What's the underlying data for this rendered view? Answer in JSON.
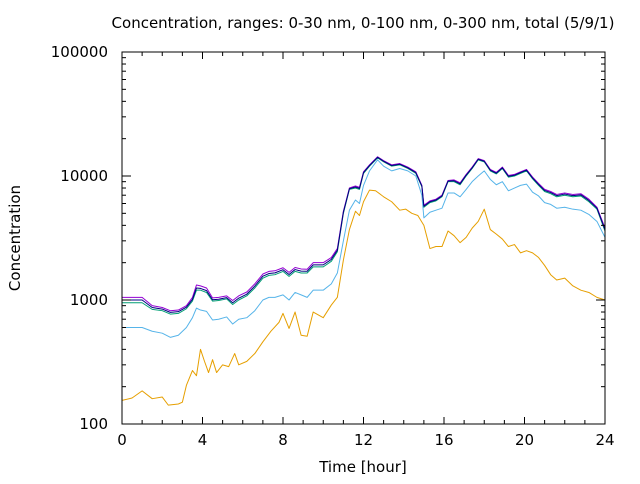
{
  "chart_data": {
    "type": "line",
    "title": "Concentration, ranges: 0-30 nm, 0-100 nm, 0-300 nm, total (5/9/1)",
    "xlabel": "Time [hour]",
    "ylabel": "Concentration",
    "xlim": [
      0,
      24
    ],
    "ylim": [
      100,
      100000
    ],
    "yscale": "log",
    "grid": false,
    "legend": "none",
    "x_ticks": [
      0,
      4,
      8,
      12,
      16,
      20,
      24
    ],
    "x_tick_labels": [
      "0",
      "4",
      "8",
      "12",
      "16",
      "20",
      "24"
    ],
    "y_ticks": [
      100,
      1000,
      10000,
      100000
    ],
    "y_tick_labels": [
      "100",
      "1000",
      "10000",
      "100000"
    ],
    "series": [
      {
        "color": "#e69f00",
        "x": [
          0,
          0.5,
          1,
          1.5,
          2,
          2.3,
          2.8,
          3.0,
          3.2,
          3.5,
          3.7,
          3.9,
          4.1,
          4.3,
          4.5,
          4.7,
          5.0,
          5.3,
          5.6,
          5.8,
          6.2,
          6.6,
          7.0,
          7.4,
          7.8,
          8.0,
          8.3,
          8.6,
          8.9,
          9.2,
          9.5,
          10.0,
          10.4,
          10.7,
          11.0,
          11.3,
          11.6,
          11.8,
          12.0,
          12.3,
          12.6,
          13.0,
          13.4,
          13.8,
          14.1,
          14.4,
          14.7,
          15.0,
          15.3,
          15.6,
          15.9,
          16.2,
          16.5,
          16.8,
          17.1,
          17.4,
          17.7,
          18.0,
          18.3,
          18.6,
          18.9,
          19.2,
          19.5,
          19.8,
          20.1,
          20.4,
          20.7,
          21.0,
          21.3,
          21.6,
          22.0,
          22.4,
          22.8,
          23.2,
          23.6,
          24.0
        ],
        "values": [
          155,
          162,
          185,
          160,
          165,
          142,
          145,
          150,
          205,
          270,
          245,
          400,
          320,
          260,
          330,
          260,
          300,
          290,
          370,
          300,
          320,
          370,
          460,
          560,
          660,
          780,
          590,
          800,
          520,
          510,
          800,
          720,
          910,
          1050,
          2100,
          3700,
          5200,
          4800,
          6200,
          7700,
          7600,
          6800,
          6200,
          5300,
          5400,
          5000,
          4800,
          4000,
          2600,
          2700,
          2700,
          3600,
          3300,
          2900,
          3200,
          3800,
          4300,
          5400,
          3700,
          3400,
          3100,
          2700,
          2800,
          2400,
          2500,
          2400,
          2200,
          1900,
          1600,
          1450,
          1500,
          1300,
          1200,
          1150,
          1050,
          1000
        ]
      },
      {
        "color": "#56b4e9",
        "x": [
          0,
          1,
          1.5,
          2,
          2.4,
          2.8,
          3.2,
          3.5,
          3.7,
          3.9,
          4.2,
          4.5,
          4.8,
          5.2,
          5.5,
          5.8,
          6.2,
          6.6,
          7.0,
          7.3,
          7.6,
          8.0,
          8.3,
          8.6,
          8.9,
          9.2,
          9.5,
          10.0,
          10.4,
          10.7,
          11.0,
          11.3,
          11.6,
          11.8,
          12.0,
          12.3,
          12.7,
          13.0,
          13.4,
          13.8,
          14.2,
          14.6,
          14.9,
          15.0,
          15.3,
          15.6,
          15.9,
          16.2,
          16.5,
          16.8,
          17.1,
          17.4,
          17.7,
          18.0,
          18.3,
          18.6,
          18.9,
          19.2,
          19.5,
          19.8,
          20.1,
          20.4,
          20.7,
          21.0,
          21.3,
          21.6,
          22.0,
          22.4,
          22.8,
          23.2,
          23.6,
          24.0
        ],
        "values": [
          600,
          600,
          560,
          540,
          500,
          520,
          600,
          720,
          860,
          830,
          810,
          690,
          700,
          730,
          640,
          700,
          720,
          820,
          1000,
          1050,
          1050,
          1100,
          1000,
          1150,
          1100,
          1050,
          1200,
          1200,
          1350,
          1650,
          3000,
          5300,
          6400,
          6000,
          8400,
          11000,
          13500,
          12000,
          11000,
          11500,
          11000,
          10000,
          7000,
          4600,
          5100,
          5300,
          5500,
          7300,
          7300,
          6800,
          7800,
          9000,
          10000,
          11000,
          9400,
          8500,
          9000,
          7600,
          8000,
          8400,
          8600,
          7400,
          6900,
          6100,
          5900,
          5500,
          5600,
          5400,
          5300,
          4900,
          4300,
          3200
        ]
      },
      {
        "color": "#009e73",
        "x": [
          0,
          1,
          1.5,
          2,
          2.4,
          2.8,
          3.2,
          3.5,
          3.7,
          3.9,
          4.2,
          4.5,
          4.8,
          5.2,
          5.5,
          5.8,
          6.2,
          6.6,
          7.0,
          7.3,
          7.6,
          8.0,
          8.3,
          8.6,
          8.9,
          9.2,
          9.5,
          10.0,
          10.4,
          10.7,
          11.0,
          11.3,
          11.6,
          11.8,
          12.0,
          12.3,
          12.7,
          13.0,
          13.4,
          13.8,
          14.2,
          14.6,
          14.9,
          15.0,
          15.3,
          15.6,
          15.9,
          16.2,
          16.5,
          16.8,
          17.1,
          17.4,
          17.7,
          18.0,
          18.3,
          18.6,
          18.9,
          19.2,
          19.5,
          19.8,
          20.1,
          20.4,
          20.7,
          21.0,
          21.3,
          21.6,
          22.0,
          22.4,
          22.8,
          23.2,
          23.6,
          24.0
        ],
        "values": [
          950,
          950,
          840,
          820,
          770,
          780,
          850,
          980,
          1200,
          1200,
          1150,
          980,
          990,
          1020,
          920,
          1000,
          1080,
          1250,
          1500,
          1580,
          1600,
          1700,
          1550,
          1700,
          1650,
          1650,
          1850,
          1850,
          2050,
          2450,
          5000,
          7800,
          8000,
          7800,
          10500,
          12000,
          14000,
          13000,
          12000,
          12300,
          11500,
          10500,
          8200,
          5600,
          6100,
          6300,
          6800,
          9000,
          9000,
          8500,
          10000,
          11500,
          13500,
          13000,
          11000,
          10400,
          11500,
          9800,
          10000,
          10500,
          11000,
          9500,
          8400,
          7500,
          7200,
          6800,
          7000,
          6800,
          6900,
          6200,
          5400,
          3600
        ]
      },
      {
        "color": "#9400d3",
        "x": [
          0,
          1,
          1.5,
          2,
          2.4,
          2.8,
          3.2,
          3.5,
          3.7,
          3.9,
          4.2,
          4.5,
          4.8,
          5.2,
          5.5,
          5.8,
          6.2,
          6.6,
          7.0,
          7.3,
          7.6,
          8.0,
          8.3,
          8.6,
          8.9,
          9.2,
          9.5,
          10.0,
          10.4,
          10.7,
          11.0,
          11.3,
          11.6,
          11.8,
          12.0,
          12.3,
          12.7,
          13.0,
          13.4,
          13.8,
          14.2,
          14.6,
          14.9,
          15.0,
          15.3,
          15.6,
          15.9,
          16.2,
          16.5,
          16.8,
          17.1,
          17.4,
          17.7,
          18.0,
          18.3,
          18.6,
          18.9,
          19.2,
          19.5,
          19.8,
          20.1,
          20.4,
          20.7,
          21.0,
          21.3,
          21.6,
          22.0,
          22.4,
          22.8,
          23.2,
          23.6,
          24.0
        ],
        "values": [
          1050,
          1050,
          900,
          870,
          820,
          830,
          900,
          1050,
          1320,
          1300,
          1250,
          1040,
          1050,
          1080,
          990,
          1080,
          1160,
          1350,
          1620,
          1700,
          1720,
          1820,
          1670,
          1830,
          1780,
          1770,
          2000,
          2000,
          2200,
          2600,
          5200,
          8000,
          8300,
          8100,
          10800,
          12300,
          14300,
          13300,
          12300,
          12600,
          11800,
          10800,
          8400,
          5800,
          6300,
          6500,
          7000,
          9200,
          9300,
          8800,
          10300,
          11800,
          13800,
          13300,
          11300,
          10700,
          11800,
          10100,
          10300,
          10800,
          11300,
          9800,
          8700,
          7800,
          7500,
          7100,
          7300,
          7100,
          7200,
          6500,
          5600,
          3800
        ]
      },
      {
        "color": "#000080",
        "x": [
          0,
          1,
          1.5,
          2,
          2.4,
          2.8,
          3.2,
          3.5,
          3.7,
          3.9,
          4.2,
          4.5,
          4.8,
          5.2,
          5.5,
          5.8,
          6.2,
          6.6,
          7.0,
          7.3,
          7.6,
          8.0,
          8.3,
          8.6,
          8.9,
          9.2,
          9.5,
          10.0,
          10.4,
          10.7,
          11.0,
          11.3,
          11.6,
          11.8,
          12.0,
          12.3,
          12.7,
          13.0,
          13.4,
          13.8,
          14.2,
          14.6,
          14.9,
          15.0,
          15.3,
          15.6,
          15.9,
          16.2,
          16.5,
          16.8,
          17.1,
          17.4,
          17.7,
          18.0,
          18.3,
          18.6,
          18.9,
          19.2,
          19.5,
          19.8,
          20.1,
          20.4,
          20.7,
          21.0,
          21.3,
          21.6,
          22.0,
          22.4,
          22.8,
          23.2,
          23.6,
          24.0
        ],
        "values": [
          1000,
          1000,
          870,
          845,
          795,
          805,
          875,
          1010,
          1250,
          1240,
          1190,
          1005,
          1015,
          1045,
          950,
          1035,
          1115,
          1295,
          1555,
          1635,
          1655,
          1755,
          1605,
          1760,
          1710,
          1705,
          1920,
          1920,
          2125,
          2520,
          5100,
          7900,
          8150,
          7950,
          10650,
          12150,
          14150,
          13150,
          12150,
          12450,
          11650,
          10650,
          8300,
          5700,
          6200,
          6400,
          6900,
          9100,
          9150,
          8650,
          10150,
          11650,
          13650,
          13150,
          11150,
          10550,
          11650,
          9950,
          10150,
          10650,
          11150,
          9650,
          8550,
          7650,
          7350,
          6950,
          7150,
          6950,
          7050,
          6350,
          5500,
          3700
        ]
      }
    ]
  }
}
